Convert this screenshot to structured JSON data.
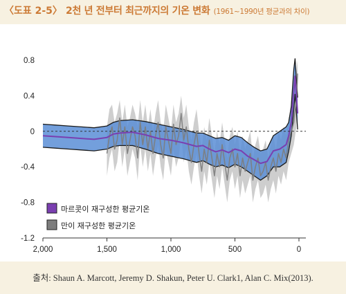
{
  "header": {
    "tag": "〈도표 2-5〉",
    "title": "2천 년 전부터 최근까지의 기온 변화",
    "subtitle": "(1961~1990년 평균과의 차이)"
  },
  "source": "출처: Shaun A. Marcott, Jeremy D. Shakun, Peter U. Clark1, Alan C. Mix(2013).",
  "colors": {
    "header_text": "#cc7a35",
    "page_bg": "#f7f1e1",
    "band_fill": "#5b8ed6",
    "band_edge": "#1a1a1a",
    "marcott_line": "#7a3fb0",
    "mann_gray": "#7d7d7d",
    "mann_envelope": "#bdbdbd"
  },
  "chart_data": {
    "type": "line",
    "x_direction": "reversed",
    "xlim": [
      2000,
      0
    ],
    "ylim": [
      -1.2,
      0.8
    ],
    "x_ticks": [
      2000,
      1500,
      1000,
      500,
      0
    ],
    "x_tick_labels": [
      "2,000",
      "1,500",
      "1,000",
      "500",
      "0"
    ],
    "y_ticks": [
      0.8,
      0.4,
      0,
      -0.4,
      -0.8,
      -1.2
    ],
    "y_tick_labels": [
      "0.8",
      "0.4",
      "0",
      "-0.4",
      "-0.8",
      "-1.2"
    ],
    "zero_reference_line": "dashed",
    "legend_position": "bottom-left",
    "series": [
      {
        "name": "마르콧이 재구성한 평균기온",
        "style": "line-with-uncertainty-band",
        "x": [
          2000,
          1900,
          1800,
          1700,
          1600,
          1500,
          1450,
          1400,
          1300,
          1200,
          1100,
          1000,
          900,
          850,
          800,
          750,
          700,
          650,
          600,
          550,
          500,
          450,
          400,
          350,
          300,
          250,
          200,
          150,
          100,
          80,
          60,
          50,
          40,
          30,
          20,
          10
        ],
        "mean": [
          -0.05,
          -0.06,
          -0.07,
          -0.08,
          -0.09,
          -0.07,
          -0.03,
          -0.02,
          -0.01,
          -0.04,
          -0.08,
          -0.1,
          -0.13,
          -0.15,
          -0.17,
          -0.16,
          -0.2,
          -0.23,
          -0.21,
          -0.24,
          -0.2,
          -0.22,
          -0.28,
          -0.32,
          -0.36,
          -0.34,
          -0.22,
          -0.2,
          -0.15,
          -0.05,
          0.1,
          0.3,
          0.45,
          0.62,
          0.4,
          0.2
        ],
        "upper": [
          0.08,
          0.07,
          0.06,
          0.05,
          0.04,
          0.06,
          0.1,
          0.12,
          0.13,
          0.11,
          0.08,
          0.05,
          0.02,
          0.0,
          -0.02,
          -0.02,
          -0.05,
          -0.08,
          -0.07,
          -0.1,
          -0.05,
          -0.07,
          -0.13,
          -0.18,
          -0.22,
          -0.2,
          -0.05,
          0.0,
          0.05,
          0.1,
          0.28,
          0.5,
          0.7,
          0.82,
          0.58,
          0.38
        ],
        "lower": [
          -0.18,
          -0.19,
          -0.2,
          -0.21,
          -0.22,
          -0.2,
          -0.17,
          -0.16,
          -0.16,
          -0.2,
          -0.25,
          -0.28,
          -0.31,
          -0.33,
          -0.35,
          -0.33,
          -0.37,
          -0.4,
          -0.38,
          -0.41,
          -0.37,
          -0.4,
          -0.45,
          -0.5,
          -0.55,
          -0.5,
          -0.4,
          -0.4,
          -0.35,
          -0.22,
          -0.05,
          0.1,
          0.25,
          0.42,
          0.22,
          0.02
        ]
      },
      {
        "name": "만이 재구성한 평균기온",
        "style": "noisy-line-with-gray-envelope",
        "x": [
          1500,
          1480,
          1460,
          1440,
          1420,
          1400,
          1380,
          1360,
          1340,
          1320,
          1300,
          1280,
          1260,
          1240,
          1220,
          1200,
          1180,
          1160,
          1140,
          1120,
          1100,
          1080,
          1060,
          1040,
          1020,
          1000,
          980,
          960,
          940,
          920,
          900,
          880,
          860,
          840,
          820,
          800,
          780,
          760,
          740,
          720,
          700,
          680,
          660,
          640,
          620,
          600,
          580,
          560,
          540,
          520,
          500,
          480,
          460,
          440,
          420,
          400,
          380,
          360,
          340,
          320,
          300,
          280,
          260,
          240,
          220,
          200,
          180,
          160,
          140,
          120,
          100,
          80,
          60,
          40,
          20,
          10
        ],
        "values": [
          -0.25,
          -0.05,
          0.05,
          -0.2,
          -0.1,
          0.15,
          -0.15,
          0.05,
          -0.25,
          -0.1,
          0.05,
          -0.05,
          -0.3,
          0.1,
          -0.15,
          0.05,
          -0.2,
          0.0,
          -0.25,
          -0.05,
          0.1,
          -0.15,
          -0.3,
          0.05,
          -0.1,
          -0.25,
          0.08,
          -0.15,
          -0.05,
          0.2,
          -0.1,
          0.05,
          -0.2,
          -0.35,
          -0.15,
          0.0,
          -0.25,
          -0.45,
          -0.2,
          -0.35,
          -0.1,
          -0.3,
          -0.5,
          -0.25,
          -0.4,
          -0.15,
          -0.35,
          -0.55,
          -0.3,
          -0.2,
          -0.4,
          -0.25,
          -0.5,
          -0.3,
          -0.45,
          -0.35,
          -0.25,
          -0.55,
          -0.4,
          -0.3,
          -0.5,
          -0.45,
          -0.35,
          -0.55,
          -0.4,
          -0.3,
          -0.45,
          -0.25,
          -0.35,
          -0.2,
          -0.3,
          -0.1,
          0.0,
          0.1,
          0.35,
          0.65
        ],
        "envelope_upper": [
          0.05,
          0.25,
          0.3,
          0.1,
          0.2,
          0.35,
          0.1,
          0.3,
          0.05,
          0.15,
          0.3,
          0.2,
          0.05,
          0.35,
          0.1,
          0.3,
          0.05,
          0.25,
          0.0,
          0.2,
          0.35,
          0.1,
          0.0,
          0.3,
          0.15,
          0.0,
          0.3,
          0.1,
          0.2,
          0.4,
          0.15,
          0.3,
          0.05,
          -0.1,
          0.1,
          0.25,
          0.0,
          -0.2,
          0.05,
          -0.1,
          0.15,
          -0.05,
          -0.25,
          0.0,
          -0.15,
          0.1,
          -0.1,
          -0.3,
          -0.05,
          0.05,
          -0.15,
          0.0,
          -0.25,
          -0.05,
          -0.2,
          -0.1,
          0.0,
          -0.3,
          -0.15,
          -0.05,
          -0.25,
          -0.2,
          -0.1,
          -0.3,
          -0.15,
          -0.05,
          -0.2,
          0.0,
          -0.1,
          0.05,
          -0.05,
          0.15,
          0.25,
          0.4,
          0.7,
          0.8
        ],
        "envelope_lower": [
          -0.5,
          -0.3,
          -0.2,
          -0.45,
          -0.35,
          -0.1,
          -0.4,
          -0.2,
          -0.5,
          -0.35,
          -0.2,
          -0.3,
          -0.55,
          -0.15,
          -0.4,
          -0.2,
          -0.45,
          -0.25,
          -0.5,
          -0.3,
          -0.15,
          -0.4,
          -0.55,
          -0.2,
          -0.35,
          -0.5,
          -0.2,
          -0.4,
          -0.3,
          -0.05,
          -0.35,
          -0.2,
          -0.45,
          -0.6,
          -0.4,
          -0.25,
          -0.5,
          -0.7,
          -0.45,
          -0.6,
          -0.35,
          -0.55,
          -0.75,
          -0.5,
          -0.65,
          -0.4,
          -0.6,
          -0.8,
          -0.55,
          -0.45,
          -0.65,
          -0.5,
          -0.75,
          -0.55,
          -0.7,
          -0.6,
          -0.5,
          -0.8,
          -0.65,
          -0.55,
          -0.75,
          -0.7,
          -0.6,
          -0.8,
          -0.65,
          -0.55,
          -0.7,
          -0.5,
          -0.6,
          -0.45,
          -0.55,
          -0.35,
          -0.25,
          -0.15,
          0.05,
          0.35
        ]
      }
    ]
  }
}
